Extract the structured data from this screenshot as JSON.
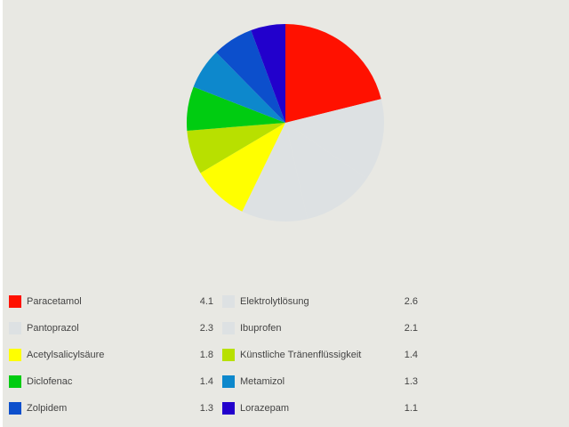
{
  "chart_data": {
    "type": "pie",
    "title": "",
    "legend_placement": "bottom",
    "categories": [
      "Paracetamol",
      "Elektrolytlösung",
      "Pantoprazol",
      "Ibuprofen",
      "Acetylsalicylsäure",
      "Künstliche Tränenflüssigkeit",
      "Diclofenac",
      "Metamizol",
      "Zolpidem",
      "Lorazepam"
    ],
    "values": [
      4.1,
      2.6,
      2.3,
      2.1,
      1.8,
      1.4,
      1.4,
      1.3,
      1.3,
      1.1
    ],
    "value_labels": [
      "4.1",
      "2.6",
      "2.3",
      "2.1",
      "1.8",
      "1.4",
      "1.4",
      "1.3",
      "1.3",
      "1.1"
    ],
    "colors": [
      "#ff1100",
      "#dde1e3",
      "#dde1e3",
      "#dde1e3",
      "#ffff00",
      "#b8e000",
      "#00cc11",
      "#0d88cc",
      "#0c4fcc",
      "#2200cc"
    ]
  }
}
